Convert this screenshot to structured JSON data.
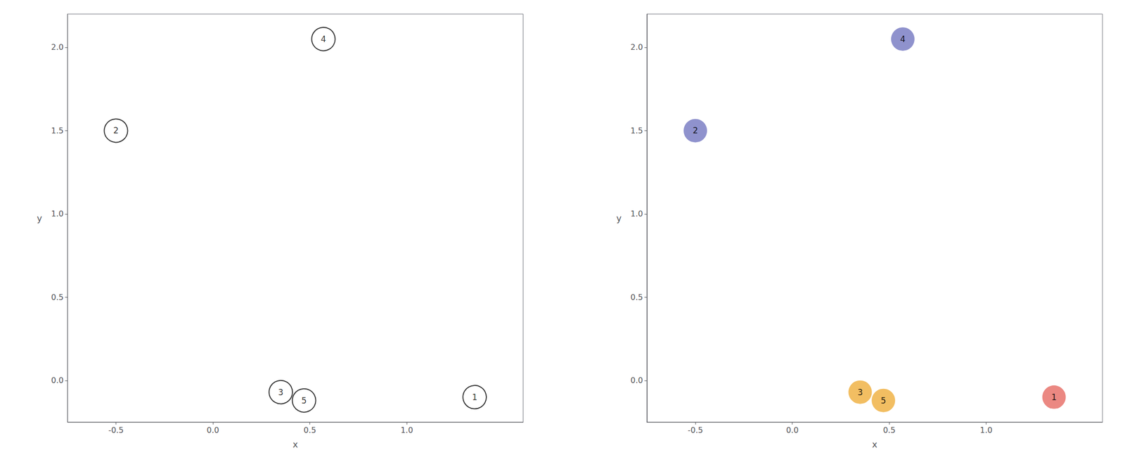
{
  "chart_data": [
    {
      "type": "scatter",
      "x": [
        1.35,
        -0.5,
        0.35,
        0.57,
        0.47
      ],
      "values": [
        -0.1,
        1.5,
        -0.07,
        2.05,
        -0.12
      ],
      "labels": [
        "1",
        "2",
        "3",
        "4",
        "5"
      ],
      "marker": "open_circle",
      "color": "#000000",
      "xlabel": "x",
      "ylabel": "y",
      "xlim": [
        -0.75,
        1.6
      ],
      "ylim": [
        -0.25,
        2.2
      ],
      "xticks": [
        -0.5,
        {
          "value": 0.0,
          "label": "0.0"
        },
        0.5,
        {
          "value": 1.0,
          "label": "1.0"
        }
      ],
      "yticks": [
        {
          "value": 0.0,
          "label": "0.0"
        },
        0.5,
        {
          "value": 1.0,
          "label": "1.0"
        },
        1.5,
        {
          "value": 2.0,
          "label": "2.0"
        }
      ],
      "grid": false
    },
    {
      "type": "scatter",
      "x": [
        1.35,
        -0.5,
        0.35,
        0.57,
        0.47
      ],
      "values": [
        -0.1,
        1.5,
        -0.07,
        2.05,
        -0.12
      ],
      "labels": [
        "1",
        "2",
        "3",
        "4",
        "5"
      ],
      "marker": "circle",
      "colors": [
        "#E8736C",
        "#7B7FC4",
        "#F0B346",
        "#7B7FC4",
        "#F0B346"
      ],
      "xlabel": "x",
      "ylabel": "y",
      "xlim": [
        -0.75,
        1.6
      ],
      "ylim": [
        -0.25,
        2.2
      ],
      "xticks": [
        -0.5,
        {
          "value": 0.0,
          "label": "0.0"
        },
        0.5,
        {
          "value": 1.0,
          "label": "1.0"
        }
      ],
      "yticks": [
        {
          "value": 0.0,
          "label": "0.0"
        },
        0.5,
        {
          "value": 1.0,
          "label": "1.0"
        },
        1.5,
        {
          "value": 2.0,
          "label": "2.0"
        }
      ],
      "grid": false
    }
  ]
}
